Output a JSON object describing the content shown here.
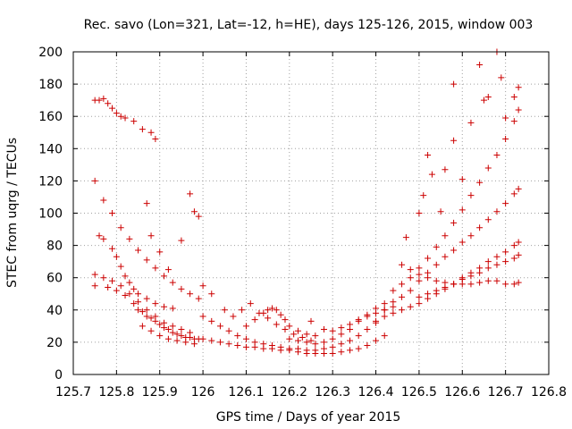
{
  "chart_data": {
    "type": "scatter",
    "title": "Rec. savo (Lon=321, Lat=-12, h=HE), days 125-126, 2015, window 003",
    "xlabel": "GPS time / Days of year 2015",
    "ylabel": "STEC from uqrg / TECUs",
    "xlim": [
      125.7,
      126.8
    ],
    "ylim": [
      0,
      200
    ],
    "xticks": [
      "125.7",
      "125.8",
      "125.9",
      "126",
      "126.1",
      "126.2",
      "126.3",
      "126.4",
      "126.5",
      "126.6",
      "126.7",
      "126.8"
    ],
    "xtick_values": [
      125.7,
      125.8,
      125.9,
      126.0,
      126.1,
      126.2,
      126.3,
      126.4,
      126.5,
      126.6,
      126.7,
      126.8
    ],
    "yticks": [
      "0",
      "20",
      "40",
      "60",
      "80",
      "100",
      "120",
      "140",
      "160",
      "180",
      "200"
    ],
    "ytick_values": [
      0,
      20,
      40,
      60,
      80,
      100,
      120,
      140,
      160,
      180,
      200
    ],
    "grid": true,
    "marker": "plus",
    "color": "#cc0000",
    "series": [
      {
        "points": [
          [
            125.75,
            170
          ],
          [
            125.76,
            170
          ],
          [
            125.77,
            171
          ],
          [
            125.78,
            168
          ],
          [
            125.79,
            165
          ],
          [
            125.8,
            162
          ],
          [
            125.81,
            160
          ],
          [
            125.82,
            159
          ],
          [
            125.84,
            157
          ],
          [
            125.86,
            152
          ],
          [
            125.88,
            150
          ],
          [
            125.89,
            146
          ],
          [
            125.75,
            120
          ],
          [
            125.77,
            108
          ],
          [
            125.79,
            100
          ],
          [
            125.81,
            91
          ],
          [
            125.83,
            84
          ],
          [
            125.85,
            77
          ],
          [
            125.87,
            71
          ],
          [
            125.89,
            66
          ],
          [
            125.91,
            61
          ],
          [
            125.93,
            57
          ],
          [
            125.95,
            53
          ],
          [
            125.97,
            50
          ],
          [
            125.99,
            47
          ],
          [
            125.76,
            86
          ],
          [
            125.77,
            84
          ],
          [
            125.79,
            78
          ],
          [
            125.8,
            73
          ],
          [
            125.81,
            67
          ],
          [
            125.82,
            61
          ],
          [
            125.83,
            57
          ],
          [
            125.84,
            53
          ],
          [
            125.85,
            50
          ],
          [
            125.87,
            47
          ],
          [
            125.89,
            44
          ],
          [
            125.91,
            42
          ],
          [
            125.93,
            41
          ],
          [
            125.75,
            62
          ],
          [
            125.77,
            60
          ],
          [
            125.79,
            58
          ],
          [
            125.81,
            55
          ],
          [
            125.83,
            50
          ],
          [
            125.85,
            45
          ],
          [
            125.87,
            40
          ],
          [
            125.89,
            36
          ],
          [
            125.91,
            32
          ],
          [
            125.93,
            30
          ],
          [
            125.95,
            28
          ],
          [
            125.97,
            26
          ],
          [
            125.75,
            55
          ],
          [
            125.78,
            54
          ],
          [
            125.8,
            52
          ],
          [
            125.82,
            49
          ],
          [
            125.84,
            44
          ],
          [
            125.86,
            39
          ],
          [
            125.88,
            35
          ],
          [
            125.9,
            31
          ],
          [
            125.92,
            28
          ],
          [
            125.94,
            25
          ],
          [
            125.96,
            23
          ],
          [
            125.98,
            22
          ],
          [
            125.85,
            40
          ],
          [
            125.87,
            36
          ],
          [
            125.89,
            33
          ],
          [
            125.91,
            29
          ],
          [
            125.93,
            26
          ],
          [
            125.95,
            24
          ],
          [
            125.97,
            23
          ],
          [
            125.99,
            22
          ],
          [
            125.86,
            30
          ],
          [
            125.88,
            27
          ],
          [
            125.9,
            24
          ],
          [
            125.92,
            22
          ],
          [
            125.94,
            21
          ],
          [
            125.96,
            20
          ],
          [
            125.98,
            19
          ],
          [
            125.87,
            106
          ],
          [
            125.88,
            86
          ],
          [
            125.9,
            76
          ],
          [
            125.92,
            65
          ],
          [
            125.95,
            83
          ],
          [
            125.97,
            112
          ],
          [
            125.98,
            101
          ],
          [
            125.99,
            98
          ],
          [
            126.0,
            22
          ],
          [
            126.02,
            21
          ],
          [
            126.04,
            20
          ],
          [
            126.06,
            19
          ],
          [
            126.08,
            18
          ],
          [
            126.1,
            17
          ],
          [
            126.12,
            17
          ],
          [
            126.14,
            16
          ],
          [
            126.16,
            16
          ],
          [
            126.18,
            15
          ],
          [
            126.2,
            15
          ],
          [
            126.22,
            14
          ],
          [
            126.24,
            13
          ],
          [
            126.26,
            13
          ],
          [
            126.28,
            13
          ],
          [
            126.3,
            13
          ],
          [
            126.32,
            14
          ],
          [
            126.34,
            15
          ],
          [
            126.36,
            16
          ],
          [
            126.38,
            18
          ],
          [
            126.4,
            21
          ],
          [
            126.42,
            24
          ],
          [
            126.0,
            36
          ],
          [
            126.02,
            33
          ],
          [
            126.04,
            30
          ],
          [
            126.06,
            27
          ],
          [
            126.08,
            24
          ],
          [
            126.1,
            22
          ],
          [
            126.12,
            20
          ],
          [
            126.14,
            19
          ],
          [
            126.16,
            18
          ],
          [
            126.18,
            17
          ],
          [
            126.2,
            16
          ],
          [
            126.22,
            16
          ],
          [
            126.24,
            15
          ],
          [
            126.26,
            15
          ],
          [
            126.28,
            16
          ],
          [
            126.3,
            17
          ],
          [
            126.32,
            19
          ],
          [
            126.34,
            21
          ],
          [
            126.36,
            24
          ],
          [
            126.38,
            28
          ],
          [
            126.4,
            32
          ],
          [
            126.0,
            55
          ],
          [
            126.02,
            50
          ],
          [
            126.05,
            40
          ],
          [
            126.07,
            36
          ],
          [
            126.09,
            40
          ],
          [
            126.11,
            44
          ],
          [
            126.13,
            38
          ],
          [
            126.15,
            35
          ],
          [
            126.17,
            31
          ],
          [
            126.19,
            28
          ],
          [
            126.21,
            25
          ],
          [
            126.23,
            23
          ],
          [
            126.25,
            21
          ],
          [
            126.1,
            30
          ],
          [
            126.12,
            34
          ],
          [
            126.14,
            38
          ],
          [
            126.15,
            40
          ],
          [
            126.16,
            41
          ],
          [
            126.17,
            40
          ],
          [
            126.18,
            37
          ],
          [
            126.19,
            34
          ],
          [
            126.2,
            30
          ],
          [
            126.22,
            27
          ],
          [
            126.24,
            25
          ],
          [
            126.26,
            24
          ],
          [
            126.2,
            22
          ],
          [
            126.22,
            21
          ],
          [
            126.24,
            20
          ],
          [
            126.26,
            19
          ],
          [
            126.28,
            20
          ],
          [
            126.3,
            22
          ],
          [
            126.32,
            25
          ],
          [
            126.34,
            28
          ],
          [
            126.36,
            33
          ],
          [
            126.38,
            37
          ],
          [
            126.4,
            41
          ],
          [
            126.42,
            44
          ],
          [
            126.25,
            33
          ],
          [
            126.28,
            28
          ],
          [
            126.3,
            27
          ],
          [
            126.32,
            29
          ],
          [
            126.34,
            31
          ],
          [
            126.36,
            34
          ],
          [
            126.38,
            36
          ],
          [
            126.4,
            38
          ],
          [
            126.42,
            40
          ],
          [
            126.44,
            42
          ],
          [
            126.4,
            33
          ],
          [
            126.42,
            36
          ],
          [
            126.44,
            38
          ],
          [
            126.46,
            40
          ],
          [
            126.48,
            42
          ],
          [
            126.5,
            44
          ],
          [
            126.52,
            47
          ],
          [
            126.54,
            50
          ],
          [
            126.56,
            53
          ],
          [
            126.58,
            56
          ],
          [
            126.6,
            60
          ],
          [
            126.62,
            63
          ],
          [
            126.64,
            66
          ],
          [
            126.66,
            70
          ],
          [
            126.68,
            73
          ],
          [
            126.7,
            76
          ],
          [
            126.72,
            80
          ],
          [
            126.73,
            82
          ],
          [
            126.42,
            40
          ],
          [
            126.44,
            45
          ],
          [
            126.46,
            48
          ],
          [
            126.48,
            52
          ],
          [
            126.5,
            58
          ],
          [
            126.52,
            63
          ],
          [
            126.54,
            68
          ],
          [
            126.56,
            73
          ],
          [
            126.58,
            77
          ],
          [
            126.6,
            82
          ],
          [
            126.62,
            86
          ],
          [
            126.64,
            91
          ],
          [
            126.66,
            96
          ],
          [
            126.68,
            101
          ],
          [
            126.7,
            106
          ],
          [
            126.72,
            112
          ],
          [
            126.73,
            115
          ],
          [
            126.44,
            52
          ],
          [
            126.46,
            56
          ],
          [
            126.48,
            60
          ],
          [
            126.5,
            66
          ],
          [
            126.52,
            72
          ],
          [
            126.54,
            79
          ],
          [
            126.56,
            86
          ],
          [
            126.58,
            94
          ],
          [
            126.6,
            102
          ],
          [
            126.62,
            111
          ],
          [
            126.64,
            119
          ],
          [
            126.66,
            128
          ],
          [
            126.68,
            136
          ],
          [
            126.7,
            146
          ],
          [
            126.72,
            157
          ],
          [
            126.73,
            164
          ],
          [
            126.47,
            85
          ],
          [
            126.5,
            100
          ],
          [
            126.51,
            111
          ],
          [
            126.52,
            136
          ],
          [
            126.53,
            124
          ],
          [
            126.55,
            101
          ],
          [
            126.56,
            127
          ],
          [
            126.58,
            145
          ],
          [
            126.58,
            180
          ],
          [
            126.6,
            121
          ],
          [
            126.62,
            156
          ],
          [
            126.64,
            192
          ],
          [
            126.65,
            170
          ],
          [
            126.66,
            172
          ],
          [
            126.68,
            200
          ],
          [
            126.69,
            184
          ],
          [
            126.7,
            159
          ],
          [
            126.72,
            172
          ],
          [
            126.73,
            178
          ],
          [
            126.46,
            68
          ],
          [
            126.48,
            65
          ],
          [
            126.5,
            62
          ],
          [
            126.52,
            60
          ],
          [
            126.54,
            58
          ],
          [
            126.56,
            57
          ],
          [
            126.58,
            56
          ],
          [
            126.6,
            56
          ],
          [
            126.62,
            56
          ],
          [
            126.64,
            57
          ],
          [
            126.66,
            58
          ],
          [
            126.68,
            58
          ],
          [
            126.7,
            56
          ],
          [
            126.72,
            56
          ],
          [
            126.73,
            57
          ],
          [
            126.5,
            48
          ],
          [
            126.52,
            50
          ],
          [
            126.54,
            52
          ],
          [
            126.56,
            54
          ],
          [
            126.58,
            56
          ],
          [
            126.6,
            59
          ],
          [
            126.62,
            61
          ],
          [
            126.64,
            63
          ],
          [
            126.66,
            66
          ],
          [
            126.68,
            68
          ],
          [
            126.7,
            70
          ],
          [
            126.72,
            72
          ],
          [
            126.73,
            74
          ]
        ]
      }
    ]
  }
}
